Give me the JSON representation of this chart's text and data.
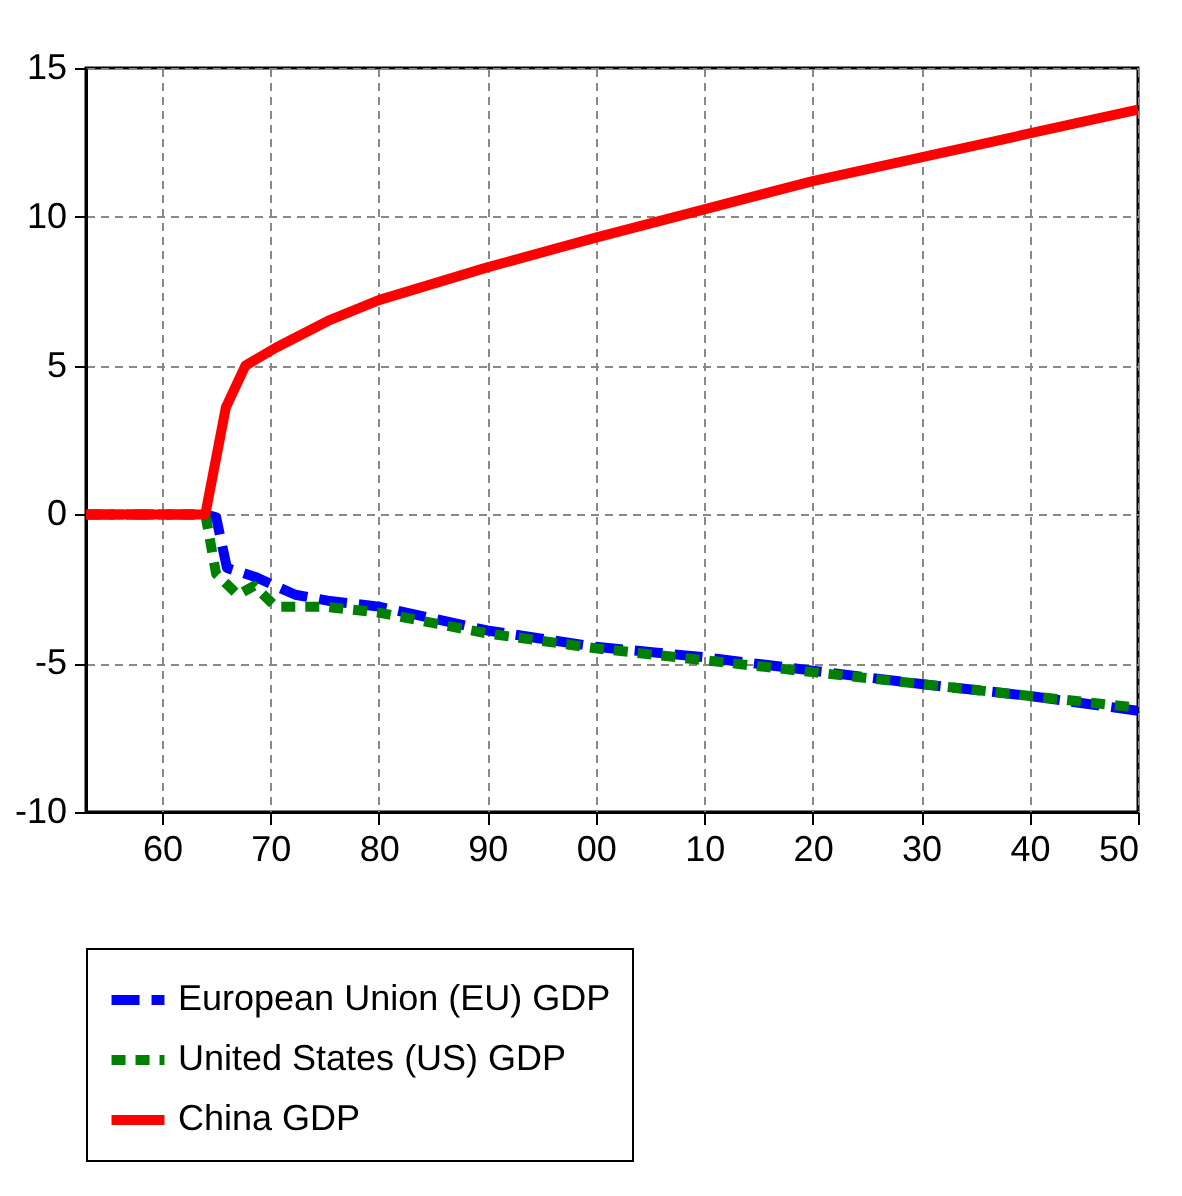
{
  "chart_data": {
    "type": "line",
    "xlim": [
      1953,
      2050
    ],
    "ylim": [
      -10,
      15
    ],
    "xticks": [
      {
        "value": 1960,
        "label": "60"
      },
      {
        "value": 1970,
        "label": "70"
      },
      {
        "value": 1980,
        "label": "80"
      },
      {
        "value": 1990,
        "label": "90"
      },
      {
        "value": 2000,
        "label": "00"
      },
      {
        "value": 2010,
        "label": "10"
      },
      {
        "value": 2020,
        "label": "20"
      },
      {
        "value": 2030,
        "label": "30"
      },
      {
        "value": 2040,
        "label": "40"
      },
      {
        "value": 2050,
        "label": "50"
      }
    ],
    "yticks": [
      -10,
      -5,
      0,
      5,
      10,
      15
    ],
    "grid": true,
    "legend": "bottom",
    "series": [
      {
        "name": "European Union (EU) GDP",
        "color": "#0000ff",
        "line_style": "dashed",
        "x": [
          1953,
          1964,
          1965,
          1966,
          1968.6,
          1972.3,
          1975.3,
          1980,
          1990,
          2000,
          2010,
          2020,
          2030,
          2040,
          2050
        ],
        "values": [
          0,
          0,
          -0.1,
          -1.8,
          -2.1,
          -2.7,
          -2.9,
          -3.1,
          -3.9,
          -4.45,
          -4.8,
          -5.25,
          -5.7,
          -6.1,
          -6.6
        ]
      },
      {
        "name": "United States (US) GDP",
        "color": "#008000",
        "line_style": "dotted",
        "x": [
          1953,
          1964,
          1965,
          1967,
          1968.5,
          1970.5,
          1975,
          1980,
          1990,
          2000,
          2010,
          2020,
          2030,
          2040,
          2050
        ],
        "values": [
          0,
          0,
          -2.0,
          -2.7,
          -2.4,
          -3.1,
          -3.1,
          -3.3,
          -4.0,
          -4.5,
          -4.9,
          -5.3,
          -5.7,
          -6.1,
          -6.5
        ]
      },
      {
        "name": "China GDP",
        "color": "#ff0000",
        "line_style": "solid",
        "x": [
          1953,
          1964,
          1965.9,
          1967.7,
          1970.5,
          1975.3,
          1980,
          1990,
          2000,
          2010,
          2020,
          2030,
          2040,
          2050
        ],
        "values": [
          0,
          0,
          3.6,
          5.0,
          5.6,
          6.5,
          7.2,
          8.3,
          9.3,
          10.25,
          11.2,
          12.0,
          12.8,
          13.6
        ]
      }
    ]
  }
}
